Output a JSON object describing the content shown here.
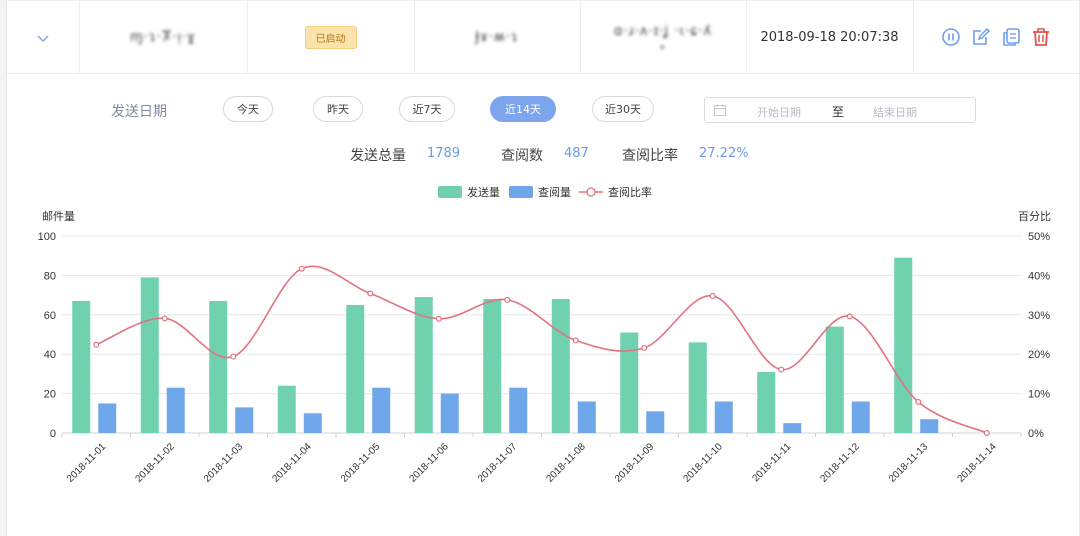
{
  "row": {
    "expand_icon": "chevron-down-icon",
    "blurred_name": "ɱ·ɿ·Ⴟ·ᴉ·ɣ",
    "status": "已启动",
    "blurred_sender": "Ɉɤ·ʍ·ɿ",
    "blurred_subject": "ɑ·ɹ·ʌ·ɪ·ʝ ·ɩ·ɕ·ʎ",
    "blurred_sub2": "ʁ",
    "datetime": "2018-09-18 20:07:38",
    "actions": [
      "pause-icon",
      "edit-icon",
      "copy-icon",
      "delete-icon"
    ]
  },
  "filter": {
    "label": "发送日期",
    "options": [
      "今天",
      "昨天",
      "近7天",
      "近14天",
      "近30天"
    ],
    "active": "近14天",
    "range_start_placeholder": "开始日期",
    "range_separator": "至",
    "range_end_placeholder": "结束日期"
  },
  "stats": {
    "total_label": "发送总量",
    "total_value": "1789",
    "read_label": "查阅数",
    "read_value": "487",
    "ratio_label": "查阅比率",
    "ratio_value": "27.22%"
  },
  "chart_data": {
    "type": "bar",
    "categories": [
      "2018-11-01",
      "2018-11-02",
      "2018-11-03",
      "2018-11-04",
      "2018-11-05",
      "2018-11-06",
      "2018-11-07",
      "2018-11-08",
      "2018-11-09",
      "2018-11-10",
      "2018-11-11",
      "2018-11-12",
      "2018-11-13",
      "2018-11-14"
    ],
    "series": [
      {
        "name": "发送量",
        "type": "bar",
        "axis": "left",
        "color": "#6fd1ad",
        "values": [
          67,
          79,
          67,
          24,
          65,
          69,
          68,
          68,
          51,
          46,
          31,
          54,
          89,
          0
        ]
      },
      {
        "name": "查阅量",
        "type": "bar",
        "axis": "left",
        "color": "#70a7ea",
        "values": [
          15,
          23,
          13,
          10,
          23,
          20,
          23,
          16,
          11,
          16,
          5,
          16,
          7,
          0
        ]
      },
      {
        "name": "查阅比率",
        "type": "line",
        "axis": "right",
        "color": "#e2727f",
        "values": [
          22.4,
          29.1,
          19.4,
          41.7,
          35.4,
          29.0,
          33.8,
          23.5,
          21.6,
          34.8,
          16.1,
          29.6,
          7.9,
          0
        ]
      }
    ],
    "ylabel": "邮件量",
    "ylim": [
      0,
      100
    ],
    "yticks": [
      "0",
      "20",
      "40",
      "60",
      "80",
      "100"
    ],
    "y2label": "百分比",
    "y2lim": [
      0,
      50
    ],
    "y2ticks": [
      "0%",
      "10%",
      "20%",
      "30%",
      "40%",
      "50%"
    ],
    "legend_position": "top-center",
    "grid": true
  }
}
